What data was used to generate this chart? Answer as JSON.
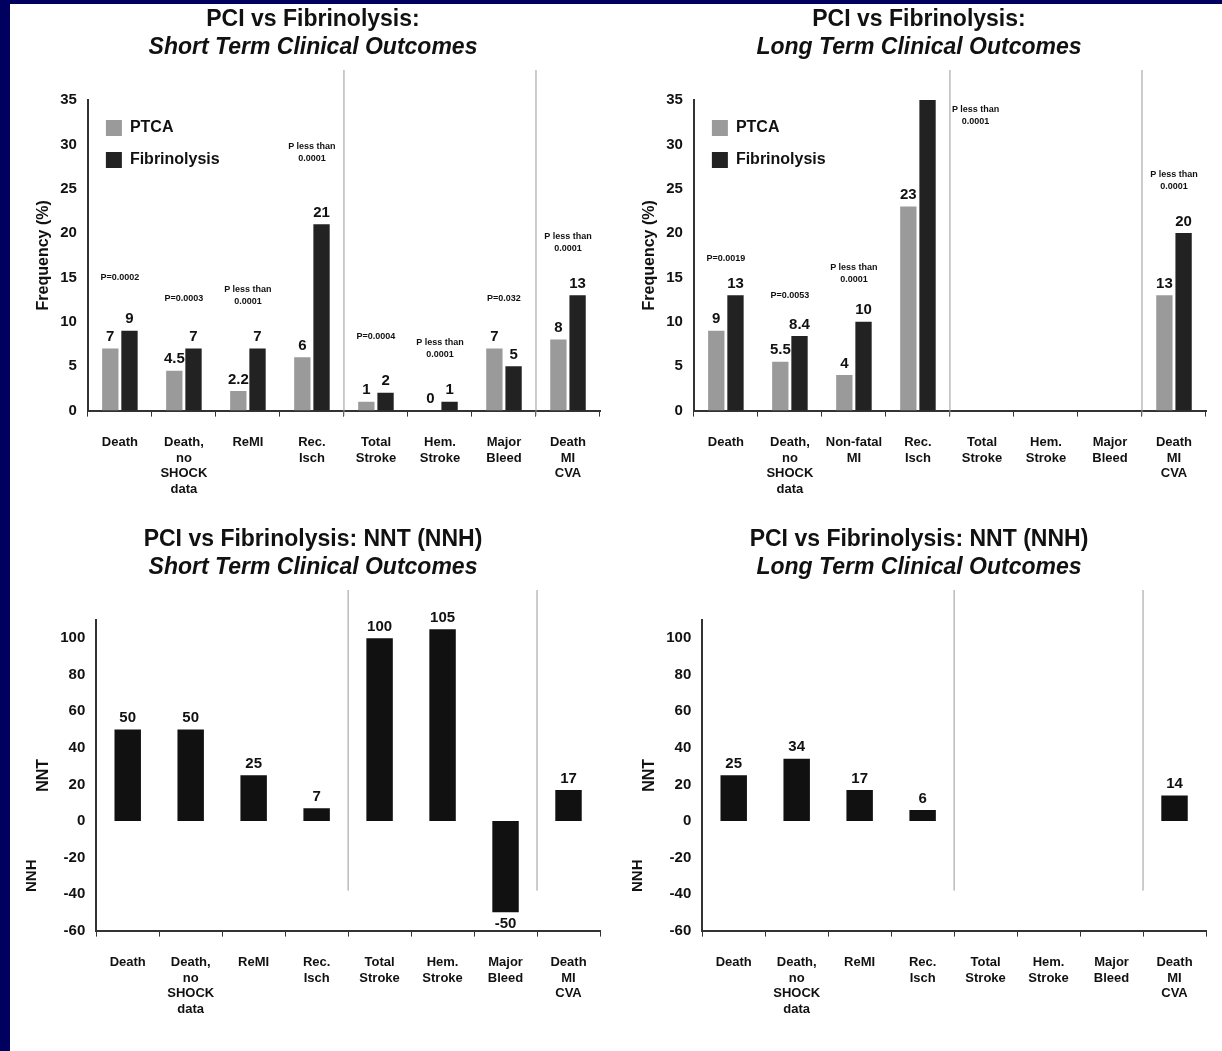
{
  "chart_data": [
    {
      "type": "bar",
      "title": "PCI vs Fibrinolysis:",
      "subtitle": "Short Term Clinical Outcomes",
      "ylabel": "Frequency (%)",
      "categories": [
        "Death",
        "Death,\nno\nSHOCK\ndata",
        "ReMI",
        "Rec.\nIsch",
        "Total\nStroke",
        "Hem.\nStroke",
        "Major\nBleed",
        "Death\nMI\nCVA"
      ],
      "series": [
        {
          "name": "PTCA",
          "color": "#9a9a9a",
          "values": [
            7,
            4.5,
            2.2,
            6,
            1,
            0,
            7,
            8
          ],
          "value_labels": [
            "7",
            "4.5",
            "2.2",
            "6",
            "1",
            "0",
            "7",
            "8"
          ]
        },
        {
          "name": "Fibrinolysis",
          "color": "#222222",
          "values": [
            9,
            7,
            7,
            21,
            2,
            1,
            5,
            13
          ],
          "value_labels": [
            "9",
            "7",
            "7",
            "21",
            "2",
            "1",
            "5",
            "13"
          ]
        }
      ],
      "ylim": [
        0,
        35
      ],
      "yticks": [
        0,
        5,
        10,
        15,
        20,
        25,
        30,
        35
      ],
      "legend": "top left",
      "annotations": [
        "P=0.0002",
        "P=0.0003",
        "P less than\n0.0001",
        "P less than\n0.0001",
        "P=0.0004",
        "P less than\n0.0001",
        "P=0.032",
        "P less than\n0.0001"
      ]
    },
    {
      "type": "bar",
      "title": "PCI vs Fibrinolysis:",
      "subtitle": "Long Term Clinical Outcomes",
      "ylabel": "Frequency (%)",
      "categories": [
        "Death",
        "Death,\nno\nSHOCK\ndata",
        "Non-fatal\nMI",
        "Rec.\nIsch",
        "Total\nStroke",
        "Hem.\nStroke",
        "Major\nBleed",
        "Death\nMI\nCVA"
      ],
      "series": [
        {
          "name": "PTCA",
          "color": "#9a9a9a",
          "values": [
            9,
            5.5,
            4,
            23,
            null,
            null,
            null,
            13
          ],
          "value_labels": [
            "9",
            "5.5",
            "4",
            "23",
            null,
            null,
            null,
            "13"
          ]
        },
        {
          "name": "Fibrinolysis",
          "color": "#222222",
          "values": [
            13,
            8.4,
            10,
            35,
            null,
            null,
            null,
            20
          ],
          "value_labels": [
            "13",
            "8.4",
            "10",
            null,
            null,
            null,
            null,
            "20"
          ]
        }
      ],
      "ylim": [
        0,
        35
      ],
      "yticks": [
        0,
        5,
        10,
        15,
        20,
        25,
        30,
        35
      ],
      "legend": "top left",
      "annotations": [
        "P=0.0019",
        "P=0.0053",
        "P less than\n0.0001",
        "P less than\n0.0001",
        "P less than\n0.0001"
      ]
    },
    {
      "type": "bar",
      "title": "PCI vs Fibrinolysis: NNT (NNH)",
      "subtitle": "Short Term Clinical Outcomes",
      "ylabel": "NNT",
      "categories": [
        "Death",
        "Death,\nno\nSHOCK\ndata",
        "ReMI",
        "Rec.\nIsch",
        "Total\nStroke",
        "Hem.\nStroke",
        "Major\nBleed",
        "Death\nMI\nCVA"
      ],
      "values": [
        50,
        50,
        25,
        7,
        100,
        105,
        -50,
        17
      ],
      "color": "#111111",
      "data_labels": true,
      "ylim": [
        -60,
        110
      ],
      "yticks": [
        -60,
        -40,
        -20,
        0,
        20,
        40,
        60,
        80,
        100
      ],
      "annotations": [
        "NNH"
      ]
    },
    {
      "type": "bar",
      "title": "PCI vs Fibrinolysis: NNT (NNH)",
      "subtitle": "Long Term Clinical Outcomes",
      "ylabel": "NNT",
      "categories": [
        "Death",
        "Death,\nno\nSHOCK\ndata",
        "ReMI",
        "Rec.\nIsch",
        "Total\nStroke",
        "Hem.\nStroke",
        "Major\nBleed",
        "Death\nMI\nCVA"
      ],
      "values": [
        25,
        34,
        17,
        6,
        null,
        null,
        null,
        14
      ],
      "color": "#111111",
      "data_labels": true,
      "ylim": [
        -60,
        110
      ],
      "yticks": [
        -60,
        -40,
        -20,
        0,
        20,
        40,
        60,
        80,
        100
      ],
      "annotations": [
        "NNH"
      ]
    }
  ]
}
